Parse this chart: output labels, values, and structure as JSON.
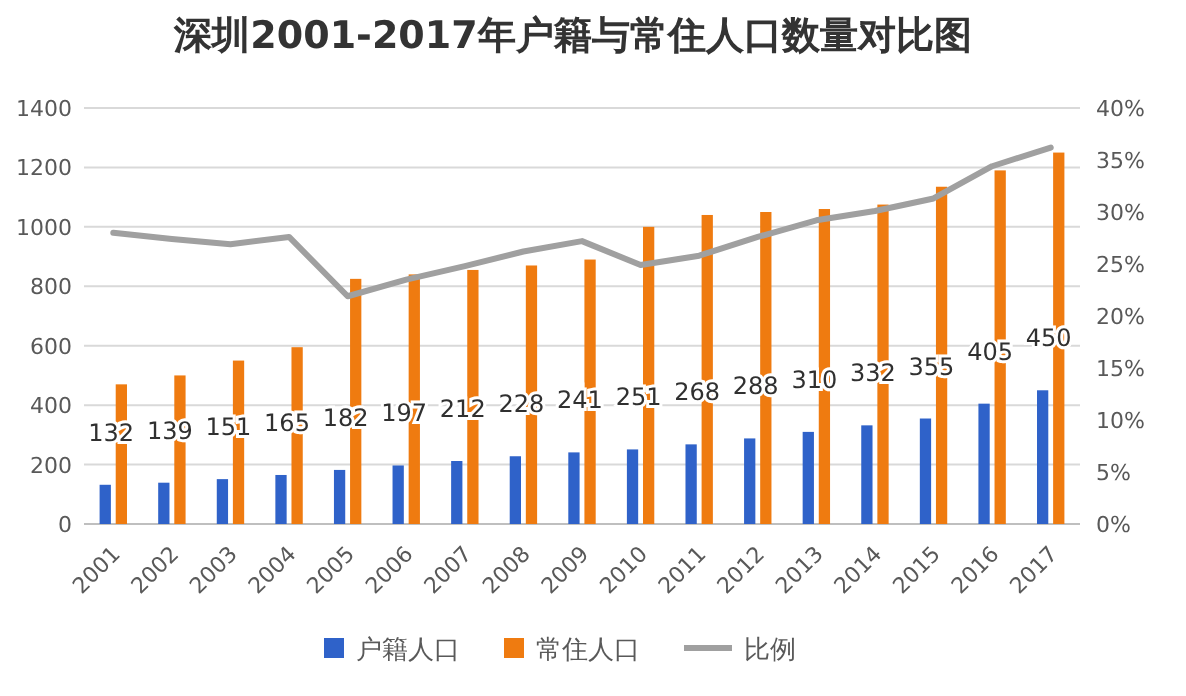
{
  "chart_data": {
    "type": "bar",
    "title": "深圳2001-2017年户籍与常住人口数量对比图",
    "categories": [
      "2001",
      "2002",
      "2003",
      "2004",
      "2005",
      "2006",
      "2007",
      "2008",
      "2009",
      "2010",
      "2011",
      "2012",
      "2013",
      "2014",
      "2015",
      "2016",
      "2017"
    ],
    "series": [
      {
        "name": "户籍人口",
        "color": "#2f62c9",
        "values": [
          132,
          139,
          151,
          165,
          182,
          197,
          212,
          228,
          241,
          251,
          268,
          288,
          310,
          332,
          355,
          405,
          450
        ],
        "value_labels": [
          "132",
          "139",
          "151",
          "165",
          "182",
          "197",
          "212",
          "228",
          "241",
          "251",
          "268",
          "288",
          "310",
          "332",
          "355",
          "405",
          "450"
        ]
      },
      {
        "name": "常住人口",
        "color": "#ef7b10",
        "values": [
          470,
          500,
          550,
          595,
          825,
          840,
          855,
          870,
          890,
          1000,
          1040,
          1050,
          1060,
          1075,
          1135,
          1190,
          1250
        ]
      },
      {
        "name": "比例",
        "type": "line",
        "axis": "y2",
        "color": "#a0a0a0",
        "values": [
          28.0,
          27.4,
          26.9,
          27.6,
          21.9,
          23.5,
          24.8,
          26.2,
          27.2,
          24.9,
          25.8,
          27.6,
          29.2,
          30.1,
          31.3,
          34.4,
          36.2
        ]
      }
    ],
    "ylim": [
      0,
      1400
    ],
    "yticks": [
      0,
      200,
      400,
      600,
      800,
      1000,
      1200,
      1400
    ],
    "y2lim": [
      0,
      40
    ],
    "y2ticks": [
      {
        "value": 0,
        "label": "0%"
      },
      {
        "value": 5,
        "label": "5%"
      },
      {
        "value": 10,
        "label": "10%"
      },
      {
        "value": 15,
        "label": "15%"
      },
      {
        "value": 20,
        "label": "20%"
      },
      {
        "value": 25,
        "label": "25%"
      },
      {
        "value": 30,
        "label": "30%"
      },
      {
        "value": 35,
        "label": "35%"
      },
      {
        "value": 40,
        "label": "40%"
      }
    ],
    "grid": "y",
    "legend": "bottom"
  }
}
